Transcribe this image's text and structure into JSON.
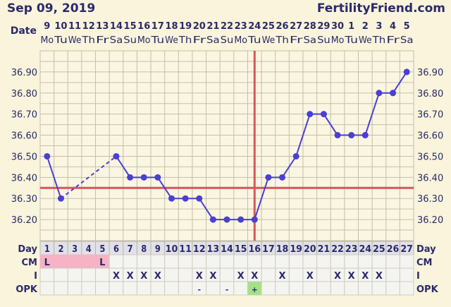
{
  "header": {
    "date_title": "Sep 09, 2019",
    "brand": "FertilityFriend.com"
  },
  "labels": {
    "date": "Date",
    "day": "Day",
    "cm": "CM",
    "intercourse": "I",
    "opk": "OPK"
  },
  "colors": {
    "background": "#f9f4db",
    "plot_bg": "#faf6e1",
    "grid": "#c4bfa9",
    "temp_line": "#4a3fd6",
    "coverline": "#d9545a",
    "ovulation_line": "#d9545a",
    "day_row_bg": "#e2e1e8",
    "cm_highlight": "#f5b3c5",
    "opk_positive": "#a3e287",
    "cell_bg": "#f4f4f0",
    "text": "#2b2a6b"
  },
  "chart_data": {
    "type": "line",
    "title": "",
    "xlabel": "",
    "ylabel": "",
    "ylim": [
      36.1,
      37.0
    ],
    "grid": true,
    "yticks": [
      "36.90",
      "36.80",
      "36.70",
      "36.60",
      "36.50",
      "36.40",
      "36.30",
      "36.20"
    ],
    "ytick_values": [
      36.9,
      36.8,
      36.7,
      36.6,
      36.5,
      36.4,
      36.3,
      36.2
    ],
    "days": [
      "1",
      "2",
      "3",
      "4",
      "5",
      "6",
      "7",
      "8",
      "9",
      "10",
      "11",
      "12",
      "13",
      "14",
      "15",
      "16",
      "17",
      "18",
      "19",
      "20",
      "21",
      "22",
      "23",
      "24",
      "25",
      "26",
      "27"
    ],
    "dates": [
      "9",
      "10",
      "11",
      "12",
      "13",
      "14",
      "15",
      "16",
      "17",
      "18",
      "19",
      "20",
      "21",
      "22",
      "23",
      "24",
      "25",
      "26",
      "27",
      "28",
      "29",
      "30",
      "1",
      "2",
      "3",
      "4",
      "5"
    ],
    "weekdays": [
      "Mo",
      "Tu",
      "We",
      "Th",
      "Fr",
      "Sa",
      "Su",
      "Mo",
      "Tu",
      "We",
      "Th",
      "Fr",
      "Sa",
      "Su",
      "Mo",
      "Tu",
      "We",
      "Th",
      "Fr",
      "Sa",
      "Su",
      "Mo",
      "Tu",
      "We",
      "Th",
      "Fr",
      "Sa"
    ],
    "temperatures": [
      36.5,
      36.3,
      null,
      null,
      null,
      36.5,
      36.4,
      36.4,
      36.4,
      36.3,
      36.3,
      36.3,
      36.2,
      36.2,
      36.2,
      36.2,
      36.4,
      36.4,
      36.5,
      36.7,
      36.7,
      36.6,
      36.6,
      36.6,
      36.8,
      36.8,
      36.9
    ],
    "coverline": 36.35,
    "ovulation_day": 16
  },
  "rows": {
    "cm": [
      "L",
      "",
      "",
      "",
      "L",
      "",
      "",
      "",
      "",
      "",
      "",
      "",
      "",
      "",
      "",
      "",
      "",
      "",
      "",
      "",
      "",
      "",
      "",
      "",
      "",
      "",
      ""
    ],
    "cm_highlight_days": [
      1,
      2,
      3,
      4,
      5
    ],
    "intercourse": [
      "",
      "",
      "",
      "",
      "",
      "X",
      "X",
      "X",
      "X",
      "",
      "",
      "X",
      "X",
      "",
      "X",
      "X",
      "",
      "X",
      "",
      "X",
      "",
      "X",
      "X",
      "X",
      "X",
      "",
      ""
    ],
    "opk": [
      "",
      "",
      "",
      "",
      "",
      "",
      "",
      "",
      "",
      "",
      "",
      "-",
      "",
      "-",
      "",
      "+",
      "",
      "",
      "",
      "",
      "",
      "",
      "",
      "",
      "",
      "",
      ""
    ]
  }
}
